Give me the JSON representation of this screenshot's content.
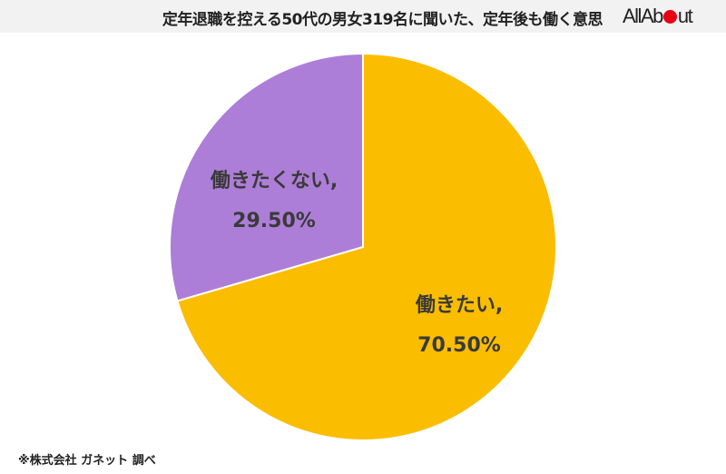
{
  "header": {
    "title": "定年退職を控える50代の男女319名に聞いた、定年後も働く意思",
    "logo_left": "AllAb",
    "logo_right": "ut"
  },
  "colors": {
    "yes": "#fbbd00",
    "no": "#ad7ed8",
    "logo_dot": "#e60012"
  },
  "labels": {
    "no_name": "働きたくない,",
    "no_value": "29.50%",
    "yes_name": "働きたい,",
    "yes_value": "70.50%"
  },
  "footer": {
    "source": "※株式会社 ガネット 調べ"
  },
  "chart_data": {
    "type": "pie",
    "title": "定年退職を控える50代の男女319名に聞いた、定年後も働く意思",
    "categories": [
      "働きたい",
      "働きたくない"
    ],
    "values": [
      70.5,
      29.5
    ],
    "unit": "%",
    "colors": [
      "#fbbd00",
      "#ad7ed8"
    ],
    "start_angle": "12 o'clock, clockwise",
    "legend": "none (data labels on slices)",
    "source": "※株式会社 ガネット 調べ"
  }
}
